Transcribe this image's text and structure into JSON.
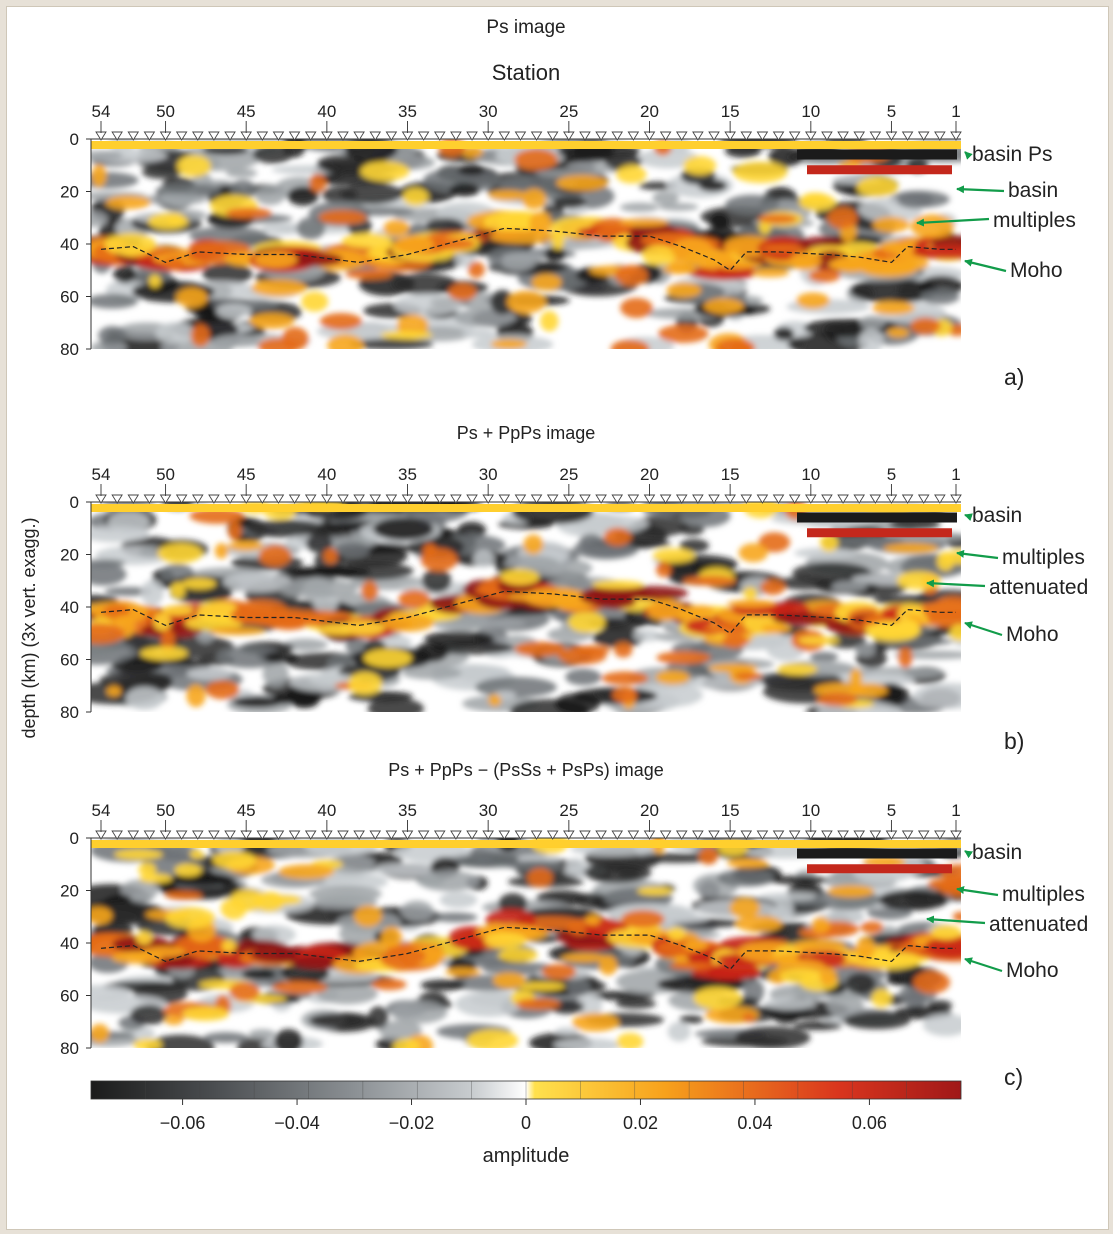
{
  "figure": {
    "ylabel": "depth (km) (3x vert. exagg.)",
    "colorbar": {
      "label": "amplitude",
      "ticks": [
        -0.06,
        -0.04,
        -0.02,
        0,
        0.02,
        0.04,
        0.06
      ],
      "tick_labels": [
        "−0.06",
        "−0.04",
        "−0.02",
        "0",
        "0.02",
        "0.04",
        "0.06"
      ],
      "range": [
        -0.076,
        0.076
      ]
    }
  },
  "chart_data": [
    {
      "type": "heatmap",
      "panel": "a)",
      "title": "Ps image",
      "xlabel": "Station",
      "ylabel": "depth (km) (3x vert. exagg.)",
      "x_ticks": [
        "54",
        "50",
        "45",
        "40",
        "35",
        "30",
        "25",
        "20",
        "15",
        "10",
        "5",
        "1"
      ],
      "y_ticks": [
        0,
        20,
        40,
        60,
        80
      ],
      "ylim": [
        80,
        0
      ],
      "annotations": [
        {
          "text": "basin Ps",
          "depth": 4
        },
        {
          "text": "basin",
          "depth": 18
        },
        {
          "text": "multiples",
          "depth": 30
        },
        {
          "text": "Moho",
          "depth": 46
        }
      ],
      "moho": {
        "station": [
          54,
          52,
          50,
          48,
          45,
          42,
          38,
          35,
          32,
          29,
          26,
          23,
          20,
          18,
          16,
          15,
          14,
          12,
          9,
          7,
          5,
          4,
          2,
          1
        ],
        "depth": [
          42,
          41,
          47,
          43,
          44,
          44,
          47,
          44,
          39,
          34,
          35,
          37,
          37,
          41,
          46,
          50,
          43,
          43,
          44,
          45,
          47,
          41,
          42,
          42
        ]
      }
    },
    {
      "type": "heatmap",
      "panel": "b)",
      "title": "Ps + PpPs image",
      "xlabel": "",
      "ylabel": "depth (km) (3x vert. exagg.)",
      "x_ticks": [
        "54",
        "50",
        "45",
        "40",
        "35",
        "30",
        "25",
        "20",
        "15",
        "10",
        "5",
        "1"
      ],
      "y_ticks": [
        0,
        20,
        40,
        60,
        80
      ],
      "ylim": [
        80,
        0
      ],
      "annotations": [
        {
          "text": "basin",
          "depth": 4
        },
        {
          "text": "multiples",
          "depth": 20
        },
        {
          "text": "attenuated",
          "depth": 30
        },
        {
          "text": "Moho",
          "depth": 48
        }
      ],
      "moho": {
        "station": [
          54,
          52,
          50,
          48,
          45,
          42,
          38,
          35,
          32,
          29,
          26,
          23,
          20,
          18,
          16,
          15,
          14,
          12,
          9,
          7,
          5,
          4,
          2,
          1
        ],
        "depth": [
          42,
          41,
          47,
          43,
          44,
          44,
          47,
          44,
          39,
          34,
          35,
          37,
          37,
          41,
          46,
          50,
          43,
          43,
          44,
          45,
          47,
          41,
          42,
          42
        ]
      }
    },
    {
      "type": "heatmap",
      "panel": "c)",
      "title": "Ps + PpPs − (PsSs + PsPs) image",
      "xlabel": "",
      "ylabel": "depth (km) (3x vert. exagg.)",
      "x_ticks": [
        "54",
        "50",
        "45",
        "40",
        "35",
        "30",
        "25",
        "20",
        "15",
        "10",
        "5",
        "1"
      ],
      "y_ticks": [
        0,
        20,
        40,
        60,
        80
      ],
      "ylim": [
        80,
        0
      ],
      "annotations": [
        {
          "text": "basin",
          "depth": 4
        },
        {
          "text": "multiples",
          "depth": 20
        },
        {
          "text": "attenuated",
          "depth": 30
        },
        {
          "text": "Moho",
          "depth": 48
        }
      ],
      "moho": {
        "station": [
          54,
          52,
          50,
          48,
          45,
          42,
          38,
          35,
          32,
          29,
          26,
          23,
          20,
          18,
          16,
          15,
          14,
          12,
          9,
          7,
          5,
          4,
          2,
          1
        ],
        "depth": [
          42,
          41,
          47,
          43,
          44,
          44,
          47,
          44,
          39,
          34,
          35,
          37,
          37,
          41,
          46,
          50,
          43,
          43,
          44,
          45,
          47,
          41,
          42,
          42
        ]
      }
    }
  ],
  "colors": {
    "annotation_arrow": "#129c4a",
    "moho_line": "#222222",
    "colormap": [
      "#1b1b1b",
      "#4a4d50",
      "#8a8f93",
      "#c9cdd0",
      "#ffffff",
      "#ffe14d",
      "#f7a11c",
      "#d9351e",
      "#a01818"
    ]
  }
}
